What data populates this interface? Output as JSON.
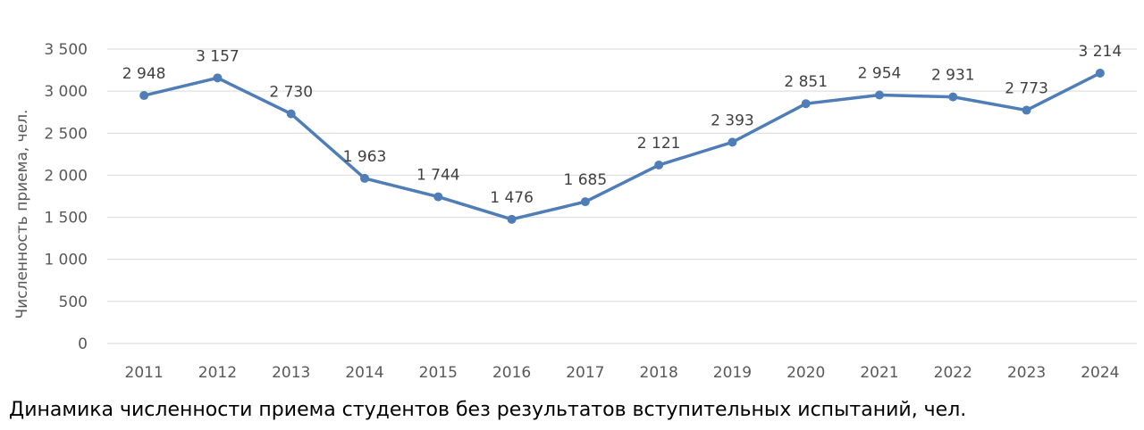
{
  "caption": "Динамика численности приема студентов без результатов вступительных испытаний, чел.",
  "chart_data": {
    "type": "line",
    "title": "",
    "xlabel": "",
    "ylabel": "Численность приема, чел.",
    "categories": [
      "2011",
      "2012",
      "2013",
      "2014",
      "2015",
      "2016",
      "2017",
      "2018",
      "2019",
      "2020",
      "2021",
      "2022",
      "2023",
      "2024"
    ],
    "values": [
      2948,
      3157,
      2730,
      1963,
      1744,
      1476,
      1685,
      2121,
      2393,
      2851,
      2954,
      2931,
      2773,
      3214
    ],
    "data_labels": [
      "2 948",
      "3 157",
      "2 730",
      "1 963",
      "1 744",
      "1 476",
      "1 685",
      "2 121",
      "2 393",
      "2 851",
      "2 954",
      "2 931",
      "2 773",
      "3 214"
    ],
    "yticks": [
      0,
      500,
      1000,
      1500,
      2000,
      2500,
      3000,
      3500
    ],
    "ytick_labels": [
      "0",
      "500",
      "1 000",
      "1 500",
      "2 000",
      "2 500",
      "3 000",
      "3 500"
    ],
    "ylim": [
      0,
      3500
    ],
    "grid": true,
    "legend": "none",
    "line_color": "#4f7db8",
    "grid_color": "#d9d9d9"
  }
}
